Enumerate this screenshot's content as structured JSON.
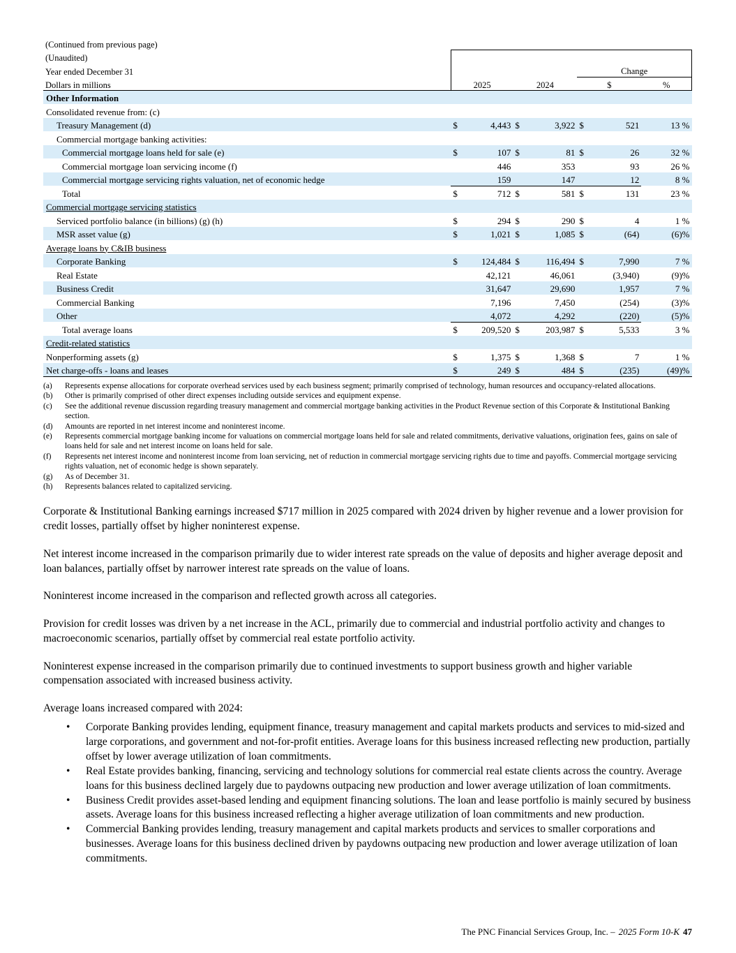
{
  "table": {
    "continued_note": "(Continued from previous page)",
    "unaudited": "(Unaudited)",
    "period_label": "Year ended December 31",
    "change_label": "Change",
    "dollars_label": "Dollars in millions",
    "columns": {
      "y2025": "2025",
      "y2024": "2024",
      "chg_dollar": "$",
      "chg_pct": "%"
    },
    "rows": [
      {
        "label": "Other Information",
        "indent": 0,
        "shaded": true,
        "bold": true
      },
      {
        "label": "Consolidated revenue from: (c)",
        "indent": 0
      },
      {
        "label": "Treasury Management (d)",
        "indent": 1,
        "shaded": true,
        "s1": "$",
        "v1": "4,443",
        "s2": "$",
        "v2": "3,922",
        "s3": "$",
        "v3": "521",
        "pct": "13 %"
      },
      {
        "label": "Commercial mortgage banking activities:",
        "indent": 1
      },
      {
        "label": "Commercial mortgage loans held for sale (e)",
        "indent": 2,
        "shaded": true,
        "s1": "$",
        "v1": "107",
        "s2": "$",
        "v2": "81",
        "s3": "$",
        "v3": "26",
        "pct": "32 %"
      },
      {
        "label": "Commercial mortgage loan servicing income (f)",
        "indent": 2,
        "v1": "446",
        "v2": "353",
        "v3": "93",
        "pct": "26 %"
      },
      {
        "label": "Commercial mortgage servicing rights valuation, net of economic hedge",
        "indent": 2,
        "shaded": true,
        "v1": "159",
        "v2": "147",
        "v3": "12",
        "pct": "8 %"
      },
      {
        "label": "Total",
        "indent": 2,
        "total": true,
        "s1": "$",
        "v1": "712",
        "s2": "$",
        "v2": "581",
        "s3": "$",
        "v3": "131",
        "pct": "23 %"
      },
      {
        "label": "Commercial mortgage servicing statistics",
        "indent": 0,
        "shaded": true,
        "underline": true
      },
      {
        "label": "Serviced portfolio balance (in billions) (g) (h)",
        "indent": 1,
        "s1": "$",
        "v1": "294",
        "s2": "$",
        "v2": "290",
        "s3": "$",
        "v3": "4",
        "pct": "1 %"
      },
      {
        "label": "MSR asset value (g)",
        "indent": 1,
        "shaded": true,
        "s1": "$",
        "v1": "1,021",
        "s2": "$",
        "v2": "1,085",
        "s3": "$",
        "v3": "(64)",
        "pct": "(6)%"
      },
      {
        "label": "Average loans by C&IB business",
        "indent": 0,
        "underline": true
      },
      {
        "label": "Corporate Banking",
        "indent": 1,
        "shaded": true,
        "s1": "$",
        "v1": "124,484",
        "s2": "$",
        "v2": "116,494",
        "s3": "$",
        "v3": "7,990",
        "pct": "7 %"
      },
      {
        "label": "Real Estate",
        "indent": 1,
        "v1": "42,121",
        "v2": "46,061",
        "v3": "(3,940)",
        "pct": "(9)%"
      },
      {
        "label": "Business Credit",
        "indent": 1,
        "shaded": true,
        "v1": "31,647",
        "v2": "29,690",
        "v3": "1,957",
        "pct": "7 %"
      },
      {
        "label": "Commercial Banking",
        "indent": 1,
        "v1": "7,196",
        "v2": "7,450",
        "v3": "(254)",
        "pct": "(3)%"
      },
      {
        "label": "Other",
        "indent": 1,
        "shaded": true,
        "v1": "4,072",
        "v2": "4,292",
        "v3": "(220)",
        "pct": "(5)%"
      },
      {
        "label": "Total average loans",
        "indent": 2,
        "total": true,
        "s1": "$",
        "v1": "209,520",
        "s2": "$",
        "v2": "203,987",
        "s3": "$",
        "v3": "5,533",
        "pct": "3 %"
      },
      {
        "label": "Credit-related statistics",
        "indent": 0,
        "shaded": true,
        "underline": true
      },
      {
        "label": "Nonperforming assets (g)",
        "indent": 0,
        "s1": "$",
        "v1": "1,375",
        "s2": "$",
        "v2": "1,368",
        "s3": "$",
        "v3": "7",
        "pct": "1 %"
      },
      {
        "label": "Net charge-offs - loans and leases",
        "indent": 0,
        "shaded": true,
        "s1": "$",
        "v1": "249",
        "s2": "$",
        "v2": "484",
        "s3": "$",
        "v3": "(235)",
        "pct": "(49)%"
      }
    ]
  },
  "footnotes": [
    {
      "key": "(a)",
      "text": "Represents expense allocations for corporate overhead services used by each business segment; primarily comprised of technology, human resources and occupancy-related allocations."
    },
    {
      "key": "(b)",
      "text": "Other is primarily comprised of other direct expenses including outside services and equipment expense."
    },
    {
      "key": "(c)",
      "text": "See the additional revenue discussion regarding treasury management and commercial mortgage banking activities in the Product Revenue section of this Corporate & Institutional Banking section."
    },
    {
      "key": "(d)",
      "text": "Amounts are reported in net interest income and noninterest income."
    },
    {
      "key": "(e)",
      "text": "Represents commercial mortgage banking income for valuations on commercial mortgage loans held for sale and related commitments, derivative valuations, origination fees, gains on sale of loans held for sale and net interest income on loans held for sale."
    },
    {
      "key": "(f)",
      "text": "Represents net interest income and noninterest income from loan servicing, net of reduction in commercial mortgage servicing rights due to time and payoffs. Commercial mortgage servicing rights valuation, net of economic hedge is shown separately."
    },
    {
      "key": "(g)",
      "text": "As of December 31."
    },
    {
      "key": "(h)",
      "text": "Represents balances related to capitalized servicing."
    }
  ],
  "paragraphs": [
    "Corporate & Institutional Banking earnings increased $717 million in 2025 compared with 2024 driven by higher revenue and a lower provision for credit losses, partially offset by higher noninterest expense.",
    "Net interest income increased in the comparison primarily due to wider interest rate spreads on the value of deposits and higher average deposit and loan balances, partially offset by narrower interest rate spreads on the value of loans.",
    "Noninterest income increased in the comparison and reflected growth across all categories.",
    "Provision for credit losses was driven by a net increase in the ACL, primarily due to commercial and industrial portfolio activity and changes to macroeconomic scenarios, partially offset by commercial real estate portfolio activity.",
    "Noninterest expense increased in the comparison primarily due to continued investments to support business growth and higher variable compensation associated with increased business activity.",
    "Average loans increased compared with 2024:"
  ],
  "bullets": [
    "Corporate Banking provides lending, equipment finance, treasury management and capital markets products and services to mid-sized and large corporations, and government and not-for-profit entities. Average loans for this business increased reflecting new production, partially offset by lower average utilization of loan commitments.",
    "Real Estate provides banking, financing, servicing and technology solutions for commercial real estate clients across the country. Average loans for this business declined largely due to paydowns outpacing new production and lower average utilization of loan commitments.",
    "Business Credit provides asset-based lending and equipment financing solutions. The loan and lease portfolio is mainly secured by business assets. Average loans for this business increased reflecting a higher average utilization of loan commitments and new production.",
    "Commercial Banking provides lending, treasury management and capital markets products and services to smaller corporations and businesses. Average loans for this business declined driven by paydowns outpacing new production and lower average utilization of loan commitments."
  ],
  "footer": {
    "company": "The PNC Financial Services Group, Inc. –",
    "form": "2025 Form 10-K",
    "page_number": "47"
  }
}
